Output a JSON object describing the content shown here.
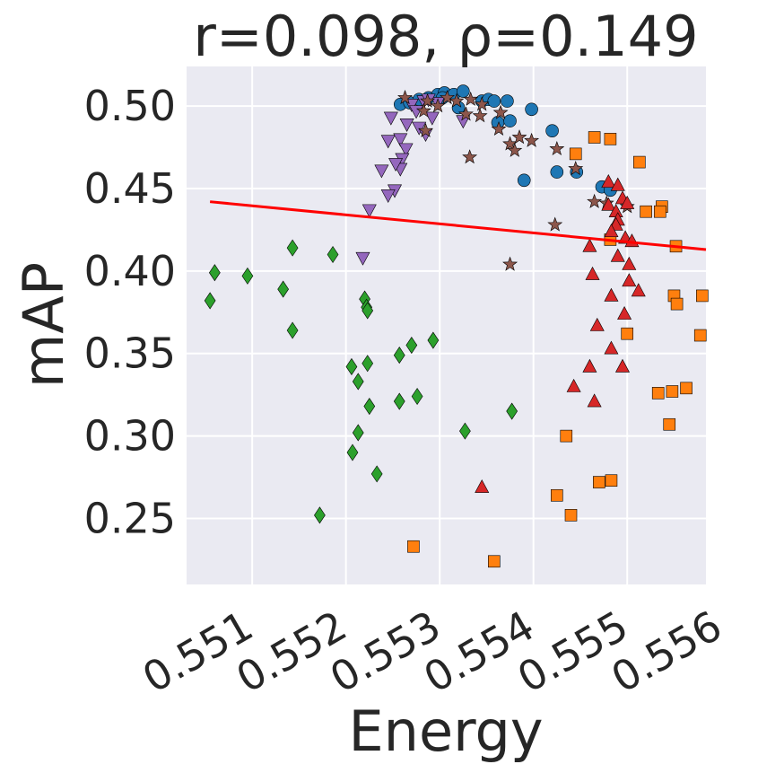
{
  "chart_data": {
    "type": "scatter",
    "title": "r=0.098, ρ=0.149",
    "xlabel": "Energy",
    "ylabel": "mAP",
    "xlim": [
      0.5503,
      0.55584
    ],
    "ylim": [
      0.21,
      0.524
    ],
    "x_ticks": [
      0.551,
      0.552,
      0.553,
      0.554,
      0.555,
      0.556
    ],
    "x_tick_labels": [
      "0.551",
      "0.552",
      "0.553",
      "0.554",
      "0.555",
      "0.556"
    ],
    "y_ticks": [
      0.25,
      0.3,
      0.35,
      0.4,
      0.45,
      0.5
    ],
    "y_tick_labels": [
      "0.25",
      "0.30",
      "0.35",
      "0.40",
      "0.45",
      "0.50"
    ],
    "grid": true,
    "colors": {
      "background": "#eaeaf2",
      "grid": "#ffffff",
      "trend": "#ff0000",
      "text": "#262626"
    },
    "trend_line": {
      "x": [
        0.55055,
        0.55584
      ],
      "y": [
        0.442,
        0.413
      ]
    },
    "series": [
      {
        "name": "blue-circles",
        "marker": "circle",
        "color": "#1f77b4",
        "points": [
          [
            0.55258,
            0.501
          ],
          [
            0.55268,
            0.502
          ],
          [
            0.55278,
            0.504
          ],
          [
            0.55288,
            0.505
          ],
          [
            0.55298,
            0.507
          ],
          [
            0.55305,
            0.508
          ],
          [
            0.55315,
            0.507
          ],
          [
            0.55325,
            0.509
          ],
          [
            0.55345,
            0.503
          ],
          [
            0.55352,
            0.504
          ],
          [
            0.55358,
            0.503
          ],
          [
            0.55372,
            0.503
          ],
          [
            0.55362,
            0.49
          ],
          [
            0.55375,
            0.491
          ],
          [
            0.55398,
            0.498
          ],
          [
            0.5542,
            0.485
          ],
          [
            0.5539,
            0.455
          ],
          [
            0.55425,
            0.46
          ],
          [
            0.55446,
            0.46
          ],
          [
            0.55303,
            0.505
          ],
          [
            0.5532,
            0.499
          ],
          [
            0.55473,
            0.451
          ],
          [
            0.55482,
            0.449
          ]
        ]
      },
      {
        "name": "purple-triangles-down",
        "marker": "triangle-down",
        "color": "#9467bd",
        "points": [
          [
            0.55283,
            0.503
          ],
          [
            0.5527,
            0.501
          ],
          [
            0.55275,
            0.497
          ],
          [
            0.55292,
            0.493
          ],
          [
            0.55248,
            0.493
          ],
          [
            0.55265,
            0.489
          ],
          [
            0.55278,
            0.487
          ],
          [
            0.55285,
            0.483
          ],
          [
            0.55245,
            0.479
          ],
          [
            0.55258,
            0.48
          ],
          [
            0.55264,
            0.474
          ],
          [
            0.5526,
            0.468
          ],
          [
            0.55258,
            0.462
          ],
          [
            0.55253,
            0.465
          ],
          [
            0.55238,
            0.461
          ],
          [
            0.55252,
            0.449
          ],
          [
            0.55245,
            0.446
          ],
          [
            0.55225,
            0.437
          ],
          [
            0.55218,
            0.408
          ],
          [
            0.55298,
            0.502
          ],
          [
            0.55325,
            0.491
          ],
          [
            0.55288,
            0.504
          ]
        ]
      },
      {
        "name": "brown-stars",
        "marker": "star",
        "color": "#8c564b",
        "points": [
          [
            0.55263,
            0.505
          ],
          [
            0.55287,
            0.503
          ],
          [
            0.55308,
            0.505
          ],
          [
            0.55318,
            0.503
          ],
          [
            0.55333,
            0.504
          ],
          [
            0.55345,
            0.501
          ],
          [
            0.55365,
            0.496
          ],
          [
            0.55283,
            0.497
          ],
          [
            0.55298,
            0.5
          ],
          [
            0.55328,
            0.495
          ],
          [
            0.55343,
            0.494
          ],
          [
            0.55363,
            0.486
          ],
          [
            0.55375,
            0.477
          ],
          [
            0.5538,
            0.473
          ],
          [
            0.55385,
            0.481
          ],
          [
            0.55398,
            0.479
          ],
          [
            0.55425,
            0.474
          ],
          [
            0.55445,
            0.462
          ],
          [
            0.55423,
            0.428
          ],
          [
            0.55465,
            0.442
          ],
          [
            0.55478,
            0.441
          ],
          [
            0.555,
            0.439
          ],
          [
            0.55332,
            0.469
          ],
          [
            0.55375,
            0.404
          ],
          [
            0.55285,
            0.485
          ]
        ]
      },
      {
        "name": "orange-squares",
        "marker": "square",
        "color": "#ff7f0e",
        "points": [
          [
            0.55445,
            0.471
          ],
          [
            0.55465,
            0.481
          ],
          [
            0.55482,
            0.48
          ],
          [
            0.55513,
            0.466
          ],
          [
            0.5552,
            0.436
          ],
          [
            0.55537,
            0.439
          ],
          [
            0.55535,
            0.436
          ],
          [
            0.55482,
            0.419
          ],
          [
            0.55552,
            0.415
          ],
          [
            0.5555,
            0.385
          ],
          [
            0.55553,
            0.38
          ],
          [
            0.5558,
            0.385
          ],
          [
            0.555,
            0.362
          ],
          [
            0.55578,
            0.361
          ],
          [
            0.55533,
            0.326
          ],
          [
            0.55548,
            0.327
          ],
          [
            0.55563,
            0.329
          ],
          [
            0.55545,
            0.307
          ],
          [
            0.55435,
            0.3
          ],
          [
            0.55425,
            0.264
          ],
          [
            0.5544,
            0.252
          ],
          [
            0.5547,
            0.272
          ],
          [
            0.55483,
            0.273
          ],
          [
            0.55272,
            0.233
          ],
          [
            0.55358,
            0.224
          ]
        ]
      },
      {
        "name": "red-triangles-up",
        "marker": "triangle-up",
        "color": "#d62728",
        "points": [
          [
            0.5548,
            0.454
          ],
          [
            0.5549,
            0.452
          ],
          [
            0.55495,
            0.444
          ],
          [
            0.555,
            0.441
          ],
          [
            0.5548,
            0.44
          ],
          [
            0.55488,
            0.436
          ],
          [
            0.5549,
            0.431
          ],
          [
            0.55488,
            0.428
          ],
          [
            0.55483,
            0.424
          ],
          [
            0.55498,
            0.42
          ],
          [
            0.55505,
            0.418
          ],
          [
            0.5546,
            0.415
          ],
          [
            0.5549,
            0.409
          ],
          [
            0.55502,
            0.404
          ],
          [
            0.55463,
            0.398
          ],
          [
            0.55502,
            0.394
          ],
          [
            0.55512,
            0.388
          ],
          [
            0.55483,
            0.385
          ],
          [
            0.55497,
            0.374
          ],
          [
            0.55468,
            0.367
          ],
          [
            0.55483,
            0.353
          ],
          [
            0.5546,
            0.342
          ],
          [
            0.55495,
            0.342
          ],
          [
            0.55443,
            0.33
          ],
          [
            0.55465,
            0.321
          ],
          [
            0.55345,
            0.269
          ]
        ]
      },
      {
        "name": "green-diamonds",
        "marker": "diamond",
        "color": "#2ca02c",
        "points": [
          [
            0.55055,
            0.382
          ],
          [
            0.5506,
            0.399
          ],
          [
            0.55095,
            0.397
          ],
          [
            0.55133,
            0.389
          ],
          [
            0.55143,
            0.414
          ],
          [
            0.55143,
            0.364
          ],
          [
            0.55186,
            0.41
          ],
          [
            0.5522,
            0.383
          ],
          [
            0.55222,
            0.378
          ],
          [
            0.55223,
            0.376
          ],
          [
            0.55206,
            0.342
          ],
          [
            0.55213,
            0.333
          ],
          [
            0.55223,
            0.344
          ],
          [
            0.55225,
            0.318
          ],
          [
            0.55213,
            0.302
          ],
          [
            0.55207,
            0.29
          ],
          [
            0.55233,
            0.277
          ],
          [
            0.55172,
            0.252
          ],
          [
            0.55257,
            0.321
          ],
          [
            0.55257,
            0.349
          ],
          [
            0.5527,
            0.355
          ],
          [
            0.55276,
            0.324
          ],
          [
            0.55293,
            0.358
          ],
          [
            0.55327,
            0.303
          ],
          [
            0.55377,
            0.315
          ]
        ]
      }
    ]
  }
}
